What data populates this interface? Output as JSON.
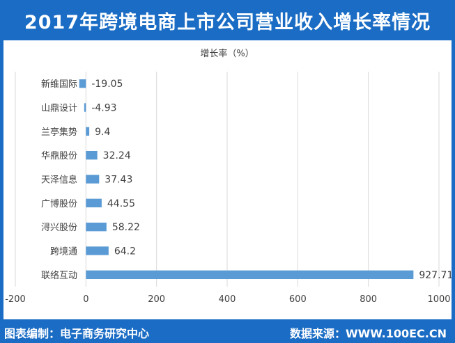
{
  "title": "2017年跨境电商上市公司营业收入增长率情况",
  "footer": {
    "left": "图表编制：电子商务研究中心",
    "right": "数据来源：WWW.100EC.CN"
  },
  "colors": {
    "header": "#1a6cc4",
    "bar": "#5b9bd5",
    "grid": "#d9d9d9",
    "text": "#404040"
  },
  "chart_data": {
    "type": "bar",
    "orientation": "horizontal",
    "title": "增长率（%）",
    "categories": [
      "新维国际",
      "山鼎设计",
      "兰亭集势",
      "华鼎股份",
      "天泽信息",
      "广博股份",
      "浔兴股份",
      "跨境通",
      "联络互动"
    ],
    "values": [
      -19.05,
      -4.93,
      9.4,
      32.24,
      37.43,
      44.55,
      58.22,
      64.2,
      927.71
    ],
    "data_labels": [
      "-19.05",
      "-4.93",
      "9.4",
      "32.24",
      "37.43",
      "44.55",
      "58.22",
      "64.2",
      "927.71"
    ],
    "xlim": [
      -200,
      1000
    ],
    "xticks": [
      -200,
      0,
      200,
      400,
      600,
      800,
      1000
    ],
    "xtick_labels": [
      "-200",
      "0",
      "200",
      "400",
      "600",
      "800",
      "1000"
    ],
    "grid": true,
    "legend": "none"
  }
}
